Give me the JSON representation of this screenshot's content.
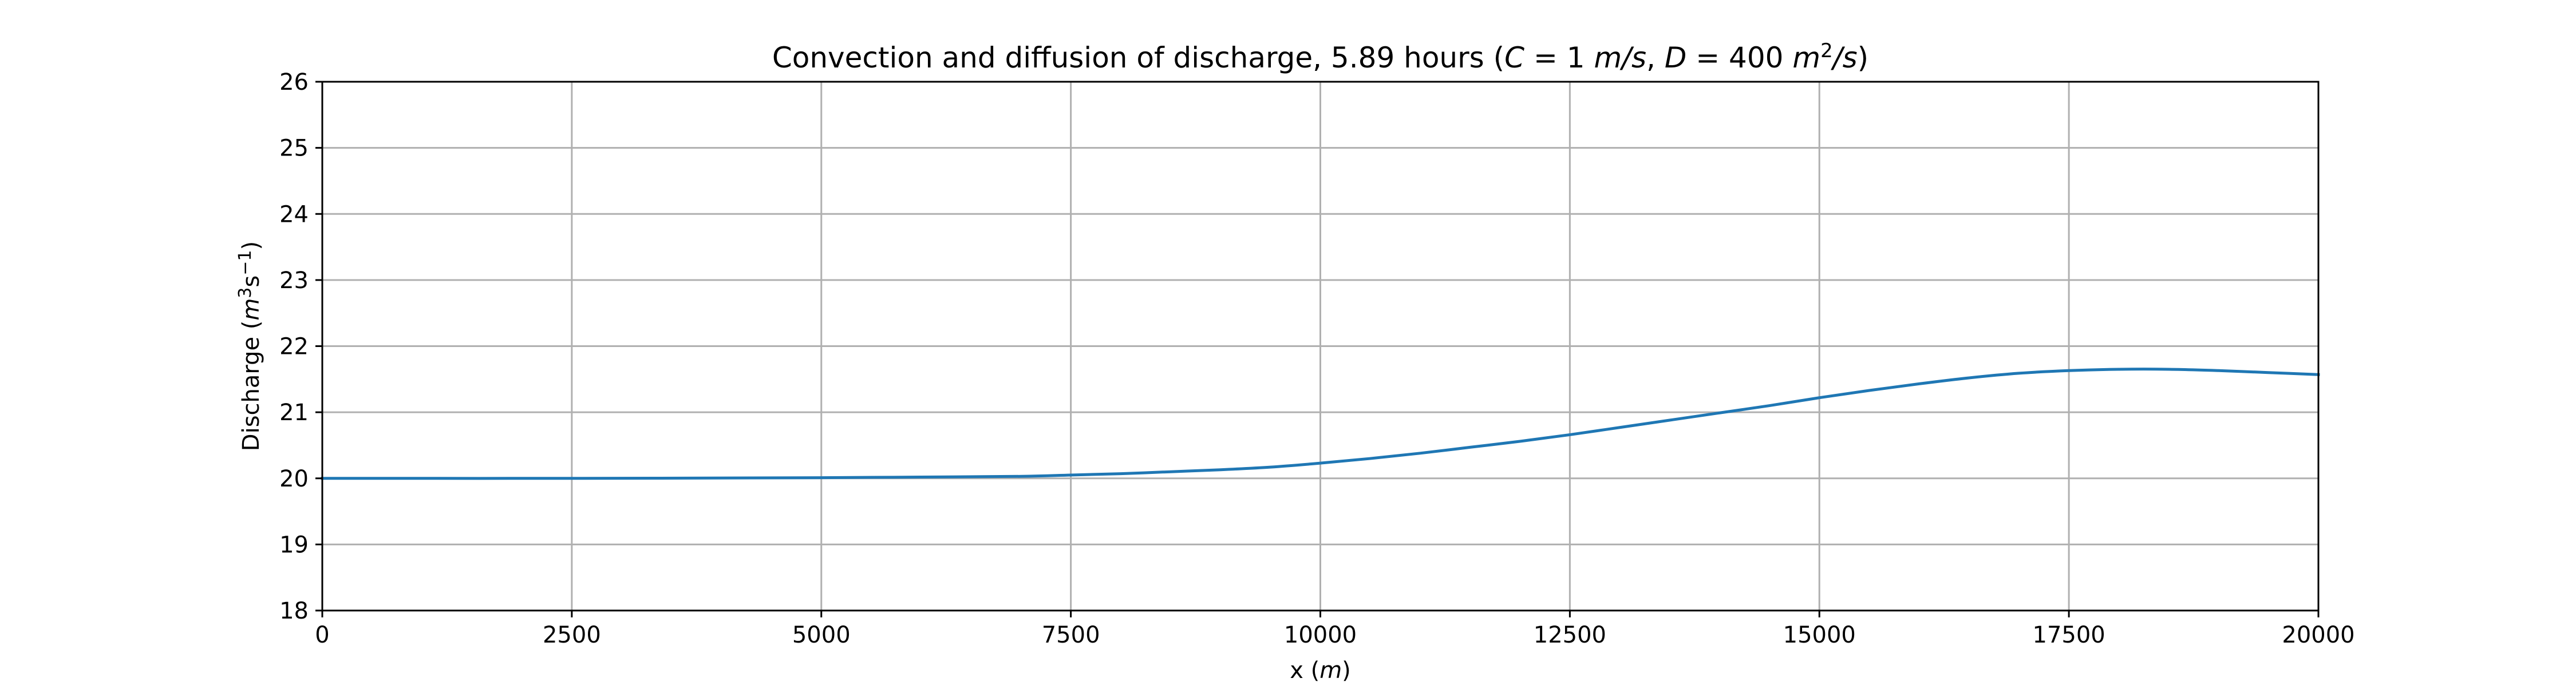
{
  "chart_data": {
    "type": "line",
    "title": "Convection and diffusion of discharge, 5.89 hours (C = 1 m/s, D = 400 m²/s)",
    "title_parts": {
      "prefix": "Convection and diffusion of discharge, 5.89 hours (",
      "c_symbol": "C",
      "c_value": " = 1 ",
      "c_unit": "m/s",
      "sep": ", ",
      "d_symbol": "D",
      "d_value": " = 400 ",
      "d_unit": "m",
      "d_unit_exp": "2",
      "d_unit_tail": "/s",
      "suffix": ")"
    },
    "xlabel": "x (m)",
    "xlabel_parts": {
      "text": "x (",
      "unit": "m",
      "close": ")"
    },
    "ylabel": "Discharge (m³s⁻¹)",
    "ylabel_parts": {
      "text": "Discharge (",
      "unit": "m",
      "exp1": "3",
      "s": "s",
      "exp2": "−1",
      "close": ")"
    },
    "xlim": [
      0,
      20000
    ],
    "ylim": [
      18,
      26
    ],
    "xticks": [
      "0",
      "2500",
      "5000",
      "7500",
      "10000",
      "12500",
      "15000",
      "17500",
      "20000"
    ],
    "yticks": [
      "18",
      "19",
      "20",
      "21",
      "22",
      "23",
      "24",
      "25",
      "26"
    ],
    "grid": true,
    "series": [
      {
        "color": "#1f77b4",
        "x": [
          0,
          2500,
          5000,
          6000,
          7000,
          7500,
          8000,
          8500,
          9000,
          9500,
          10000,
          10500,
          11000,
          11500,
          12000,
          12500,
          13000,
          13500,
          14000,
          14500,
          15000,
          15500,
          16000,
          16500,
          17000,
          17500,
          18000,
          18500,
          19000,
          19500,
          20000
        ],
        "y": [
          20.0,
          20.0,
          20.01,
          20.02,
          20.03,
          20.05,
          20.07,
          20.1,
          20.13,
          20.17,
          20.23,
          20.3,
          20.38,
          20.47,
          20.56,
          20.66,
          20.77,
          20.88,
          20.99,
          21.1,
          21.22,
          21.33,
          21.43,
          21.52,
          21.59,
          21.63,
          21.65,
          21.65,
          21.63,
          21.6,
          21.57
        ]
      }
    ]
  }
}
